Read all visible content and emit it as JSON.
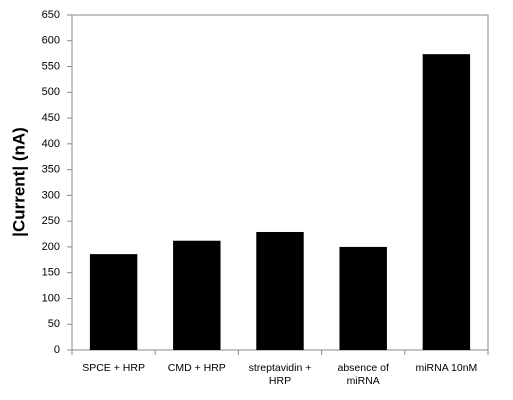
{
  "chart_data": {
    "type": "bar",
    "y_label": "|Current| (nA)",
    "categories": [
      "SPCE + HRP",
      "CMD + HRP",
      "streptavidin + HRP",
      "absence of miRNA",
      "miRNA 10nM"
    ],
    "values": [
      186,
      212,
      229,
      200,
      574
    ],
    "color": "#000000",
    "ylim": [
      0,
      650
    ],
    "yticks": [
      0,
      50,
      100,
      150,
      200,
      250,
      300,
      350,
      400,
      450,
      500,
      550,
      600,
      650
    ],
    "grid": false
  }
}
